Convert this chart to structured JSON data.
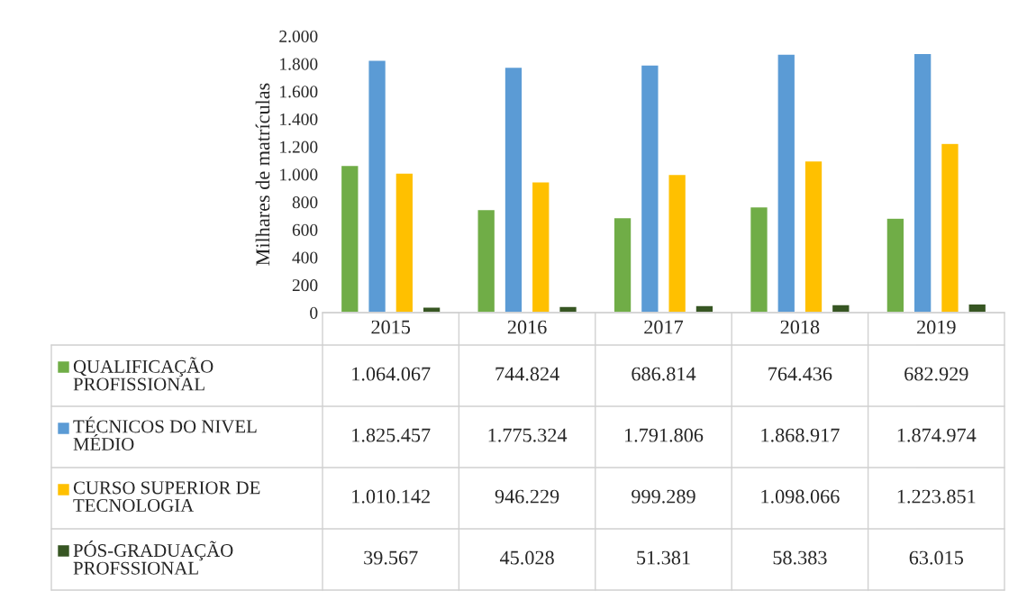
{
  "chart_data": {
    "type": "bar",
    "ylabel": "Milhares de matrículas",
    "categories": [
      "2015",
      "2016",
      "2017",
      "2018",
      "2019"
    ],
    "ylim": [
      0,
      2000
    ],
    "yticks": [
      0,
      200,
      400,
      600,
      800,
      {
        "value": 1000,
        "label": "1.000"
      },
      {
        "value": 1200,
        "label": "1.200"
      },
      {
        "value": 1400,
        "label": "1.400"
      },
      {
        "value": 1600,
        "label": "1.600"
      },
      {
        "value": 1800,
        "label": "1.800"
      },
      {
        "value": 2000,
        "label": "2.000"
      }
    ],
    "grid": false,
    "legend": "bottom left",
    "series": [
      {
        "name": "QUALIFICAÇÃO\nPROFISSIONAL",
        "color": "#70ad47",
        "values": [
          1064.067,
          744.824,
          686.814,
          764.436,
          682.929
        ]
      },
      {
        "name": "TÉCNICOS DO NIVEL\nMÉDIO",
        "color": "#5b9bd5",
        "values": [
          1825.457,
          1775.324,
          1791.806,
          1868.917,
          1874.974
        ]
      },
      {
        "name": "CURSO SUPERIOR DE\nTECNOLOGIA",
        "color": "#ffc000",
        "values": [
          1010.142,
          946.229,
          999.289,
          1098.066,
          1223.851
        ]
      },
      {
        "name": "PÓS-GRADUAÇÃO\nPROFSSIONAL",
        "color": "#375623",
        "values": [
          39.567,
          45.028,
          51.381,
          58.383,
          63.015
        ]
      }
    ],
    "annotations": [
      "1.064.067",
      "744.824",
      "686.814",
      "764.436",
      "682.929",
      "1.825.457",
      "1.775.324",
      "1.791.806",
      "1.868.917",
      "1.874.974",
      "1.010.142",
      "946.229",
      "999.289",
      "1.098.066",
      "1.223.851",
      "39.567",
      "45.028",
      "51.381",
      "58.383",
      "63.015"
    ]
  }
}
